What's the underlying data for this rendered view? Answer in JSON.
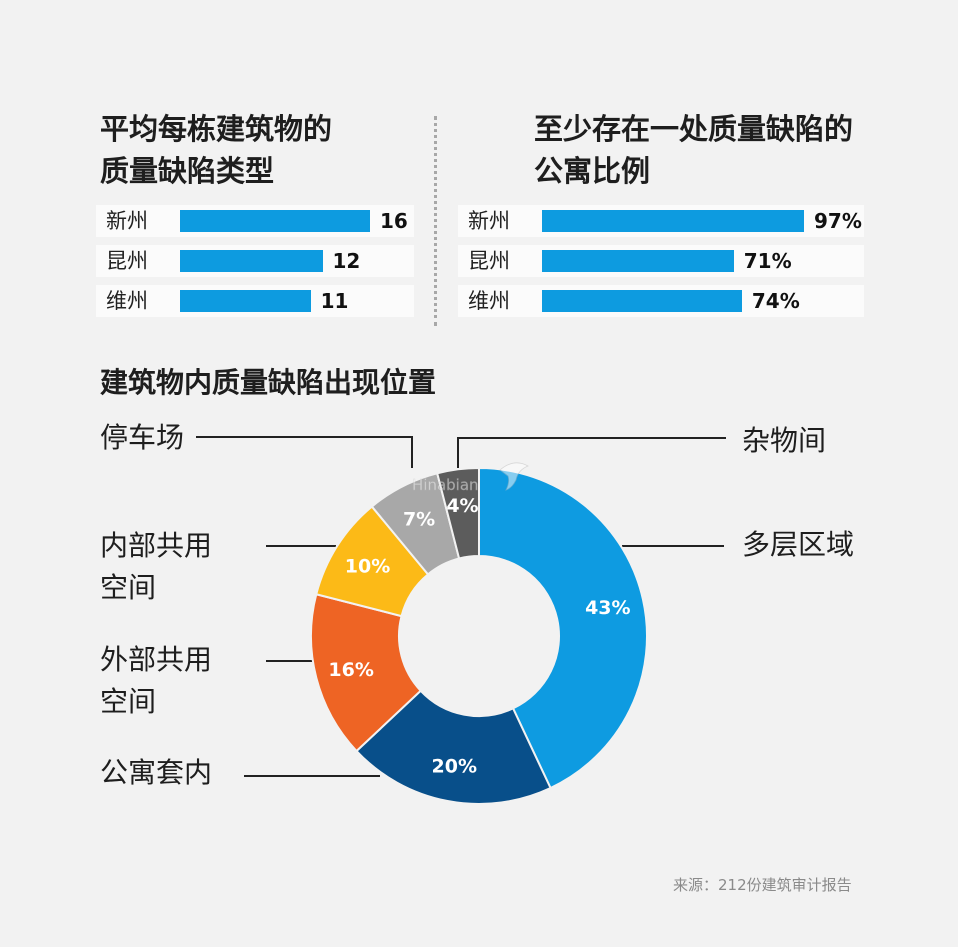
{
  "bar_panels": [
    {
      "title_lines": [
        "平均每栋建筑物的",
        "质量缺陷类型"
      ],
      "rows": [
        {
          "city": "新州",
          "value": 16,
          "label": "16"
        },
        {
          "city": "昆州",
          "value": 12,
          "label": "12"
        },
        {
          "city": "维州",
          "value": 11,
          "label": "11"
        }
      ]
    },
    {
      "title_lines": [
        "至少存在一处质量缺陷的",
        "公寓比例"
      ],
      "rows": [
        {
          "city": "新州",
          "value": 97,
          "label": "97%"
        },
        {
          "city": "昆州",
          "value": 71,
          "label": "71%"
        },
        {
          "city": "维州",
          "value": 74,
          "label": "74%"
        }
      ]
    }
  ],
  "donut": {
    "title": "建筑物内质量缺陷出现位置",
    "callouts": {
      "parking": "停车场",
      "storage": "杂物间",
      "multilevel": "多层区域",
      "internal_common": [
        "内部共用",
        "空间"
      ],
      "external_common": [
        "外部共用",
        "空间"
      ],
      "apartment": "公寓套内"
    }
  },
  "watermark": "Hinabian",
  "source": "来源：212份建筑审计报告",
  "chart_data": [
    {
      "type": "bar",
      "title": "平均每栋建筑物的质量缺陷类型",
      "categories": [
        "新州",
        "昆州",
        "维州"
      ],
      "values": [
        16,
        12,
        11
      ]
    },
    {
      "type": "bar",
      "title": "至少存在一处质量缺陷的公寓比例",
      "categories": [
        "新州",
        "昆州",
        "维州"
      ],
      "values": [
        97,
        71,
        74
      ],
      "unit": "%"
    },
    {
      "type": "pie",
      "title": "建筑物内质量缺陷出现位置",
      "labels": [
        "多层区域",
        "公寓套内",
        "外部共用空间",
        "内部共用空间",
        "停车场",
        "杂物间"
      ],
      "values": [
        43,
        20,
        16,
        10,
        7,
        4
      ],
      "value_labels": [
        "43%",
        "20%",
        "16%",
        "10%",
        "7%",
        "4%"
      ],
      "colors": [
        "#0e9be1",
        "#084f8a",
        "#ee6424",
        "#fcba17",
        "#a8a8a8",
        "#5c5c5c"
      ]
    }
  ]
}
